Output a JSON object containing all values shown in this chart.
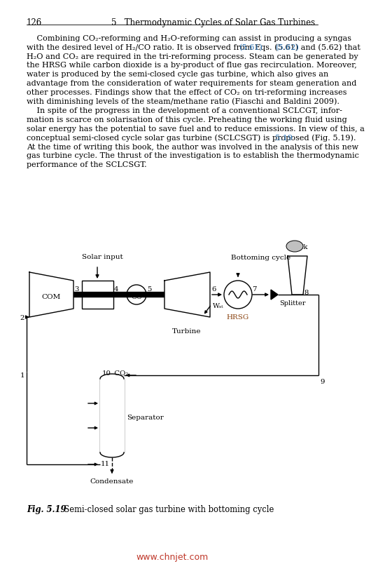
{
  "page_number": "126",
  "header_right": "5   Thermodynamic Cycles of Solar Gas Turbines",
  "para1_lines": [
    "    Combining CO₂-reforming and H₂O-reforming can assist in producing a syngas",
    "with the desired level of H₂/CO ratio. It is observed from Eqs. (5.61) and (5.62) that",
    "H₂O and CO₂ are required in the tri-reforming process. Steam can be generated by",
    "the HRSG while carbon dioxide is a by-product of flue gas recirculation. Moreover,",
    "water is produced by the semi-closed cycle gas turbine, which also gives an",
    "advantage from the consideration of water requirements for steam generation and",
    "other processes. Findings show that the effect of CO₂ on tri-reforming increases",
    "with diminishing levels of the steam/methane ratio (Fiaschi and Baldini 2009)."
  ],
  "para2_lines": [
    "    In spite of the progress in the development of a conventional SCLCGT, infor-",
    "mation is scarce on solarisation of this cycle. Preheating the working fluid using",
    "solar energy has the potential to save fuel and to reduce emissions. In view of this, a",
    "conceptual semi-closed cycle solar gas turbine (SCLCSGT) is proposed (Fig. 5.19).",
    "At the time of writing this book, the author was involved in the analysis of this new",
    "gas turbine cycle. The thrust of the investigation is to establish the thermodynamic",
    "performance of the SCLCSGT."
  ],
  "fig_caption_bold": "Fig. 5.19",
  "fig_caption_rest": "  Semi-closed solar gas turbine with bottoming cycle",
  "watermark": "www.chnjet.com",
  "bg_color": "#ffffff",
  "text_color": "#000000",
  "link_color": "#2e75b6",
  "red_color": "#c0392b",
  "hrsg_color": "#8B4513"
}
